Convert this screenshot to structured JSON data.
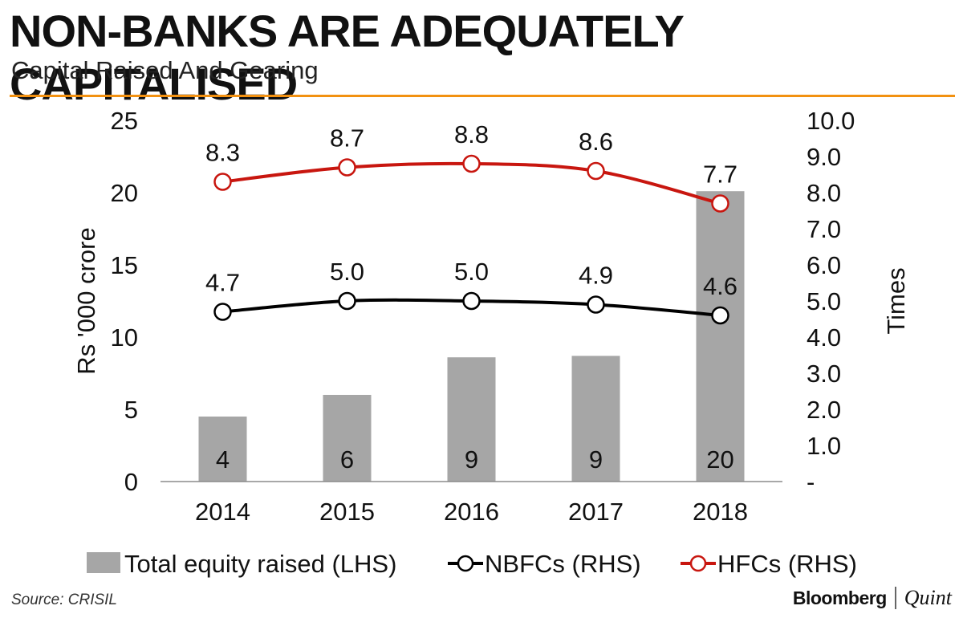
{
  "header": {
    "title": "NON-BANKS ARE ADEQUATELY CAPITALISED",
    "subtitle": "Capital Raised And Gearing"
  },
  "footer": {
    "source": "Source: CRISIL",
    "brand_primary": "Bloomberg",
    "brand_secondary": "Quint"
  },
  "colors": {
    "accent_rule": "#f29111",
    "bar": "#a6a6a6",
    "nbfc_line": "#000000",
    "hfc_line": "#c8160f"
  },
  "chart_data": {
    "type": "bar",
    "categories": [
      "2014",
      "2015",
      "2016",
      "2017",
      "2018"
    ],
    "ylabel": "Rs '000 crore",
    "ylabel_right": "Times",
    "ylim": [
      0,
      25
    ],
    "ylim_right": [
      0,
      10
    ],
    "left_ticks": [
      "0",
      "5",
      "10",
      "15",
      "20",
      "25"
    ],
    "right_ticks": [
      "-",
      "1.0",
      "2.0",
      "3.0",
      "4.0",
      "5.0",
      "6.0",
      "7.0",
      "8.0",
      "9.0",
      "10.0"
    ],
    "grid": false,
    "legend": "bottom",
    "series": [
      {
        "name": "Total equity raised (LHS)",
        "type": "bar",
        "axis": "left",
        "values": [
          4.5,
          6.0,
          8.6,
          8.7,
          20.1
        ],
        "labels": [
          "4",
          "6",
          "9",
          "9",
          "20"
        ]
      },
      {
        "name": "NBFCs (RHS)",
        "type": "line",
        "axis": "right",
        "values": [
          4.7,
          5.0,
          5.0,
          4.9,
          4.6
        ],
        "labels": [
          "4.7",
          "5.0",
          "5.0",
          "4.9",
          "4.6"
        ]
      },
      {
        "name": "HFCs (RHS)",
        "type": "line",
        "axis": "right",
        "values": [
          8.3,
          8.7,
          8.8,
          8.6,
          7.7
        ],
        "labels": [
          "8.3",
          "8.7",
          "8.8",
          "8.6",
          "7.7"
        ]
      }
    ]
  }
}
